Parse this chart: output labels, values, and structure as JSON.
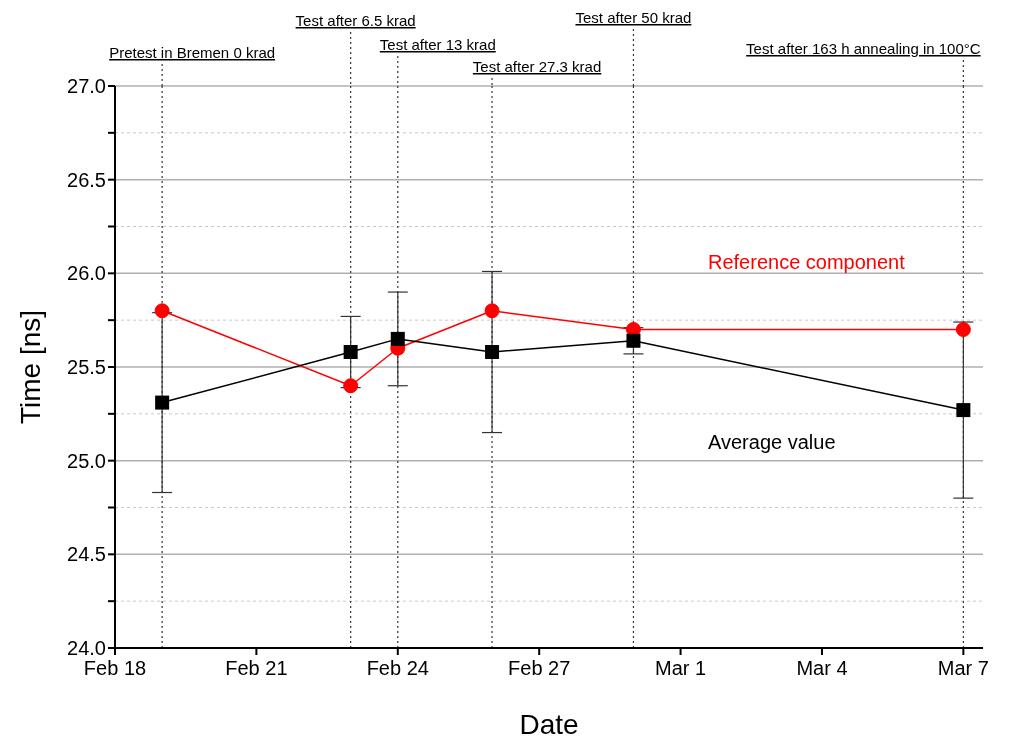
{
  "chart_data": {
    "type": "line",
    "xlabel": "Date",
    "ylabel": "Time [ns]",
    "x": [
      "--02-19",
      "--02-23",
      "--02-24",
      "--02-26",
      "--02-29",
      "--03-07"
    ],
    "series": [
      {
        "name": "Reference component",
        "color": "#ff0000",
        "marker": "circle",
        "values": [
          25.8,
          25.4,
          25.6,
          25.8,
          25.7,
          25.7
        ]
      },
      {
        "name": "Average value",
        "color": "#000000",
        "marker": "square",
        "values": [
          25.31,
          25.58,
          25.65,
          25.58,
          25.64,
          25.27
        ],
        "errors": [
          0.48,
          0.19,
          0.25,
          0.43,
          0.07,
          0.47
        ]
      }
    ],
    "xlim": [
      "--02-18",
      "--03-07T10:00"
    ],
    "xticks": [
      {
        "value": "--02-18",
        "label": "Feb 18"
      },
      {
        "value": "--02-21",
        "label": "Feb 21"
      },
      {
        "value": "--02-24",
        "label": "Feb 24"
      },
      {
        "value": "--02-27",
        "label": "Feb 27"
      },
      {
        "value": "--03-01",
        "label": "Mar 1"
      },
      {
        "value": "--03-04",
        "label": "Mar 4"
      },
      {
        "value": "--03-07",
        "label": "Mar 7"
      }
    ],
    "ylim": [
      24,
      27
    ],
    "yticks": [
      {
        "value": 24,
        "label": "24.0"
      },
      {
        "value": 24.25,
        "label": null
      },
      {
        "value": 24.5,
        "label": "24.5"
      },
      {
        "value": 24.75,
        "label": null
      },
      {
        "value": 25,
        "label": "25.0"
      },
      {
        "value": 25.25,
        "label": null
      },
      {
        "value": 25.5,
        "label": "25.5"
      },
      {
        "value": 25.75,
        "label": null
      },
      {
        "value": 26,
        "label": "26.0"
      },
      {
        "value": 26.25,
        "label": null
      },
      {
        "value": 26.5,
        "label": "26.5"
      },
      {
        "value": 26.75,
        "label": null
      },
      {
        "value": 27,
        "label": "27.0"
      }
    ],
    "grid": "y",
    "legend": false,
    "line_style": "solid",
    "ref_lines": [
      {
        "axis": "x",
        "value": "--02-19",
        "label": "Pretest in Bremen 0 krad",
        "line_style": "dotted"
      },
      {
        "axis": "x",
        "value": "--02-23",
        "label": "Test after 6.5 krad",
        "line_style": "dotted"
      },
      {
        "axis": "x",
        "value": "--02-24",
        "label": "Test after 13 krad",
        "line_style": "dotted"
      },
      {
        "axis": "x",
        "value": "--02-26",
        "label": "Test after 27.3 krad",
        "line_style": "dotted"
      },
      {
        "axis": "x",
        "value": "--02-29",
        "label": "Test after 50 krad",
        "line_style": "dotted"
      },
      {
        "axis": "x",
        "value": "--03-07",
        "label": "Test after 163 h annealing in 100°C",
        "line_style": "dotted"
      }
    ]
  }
}
